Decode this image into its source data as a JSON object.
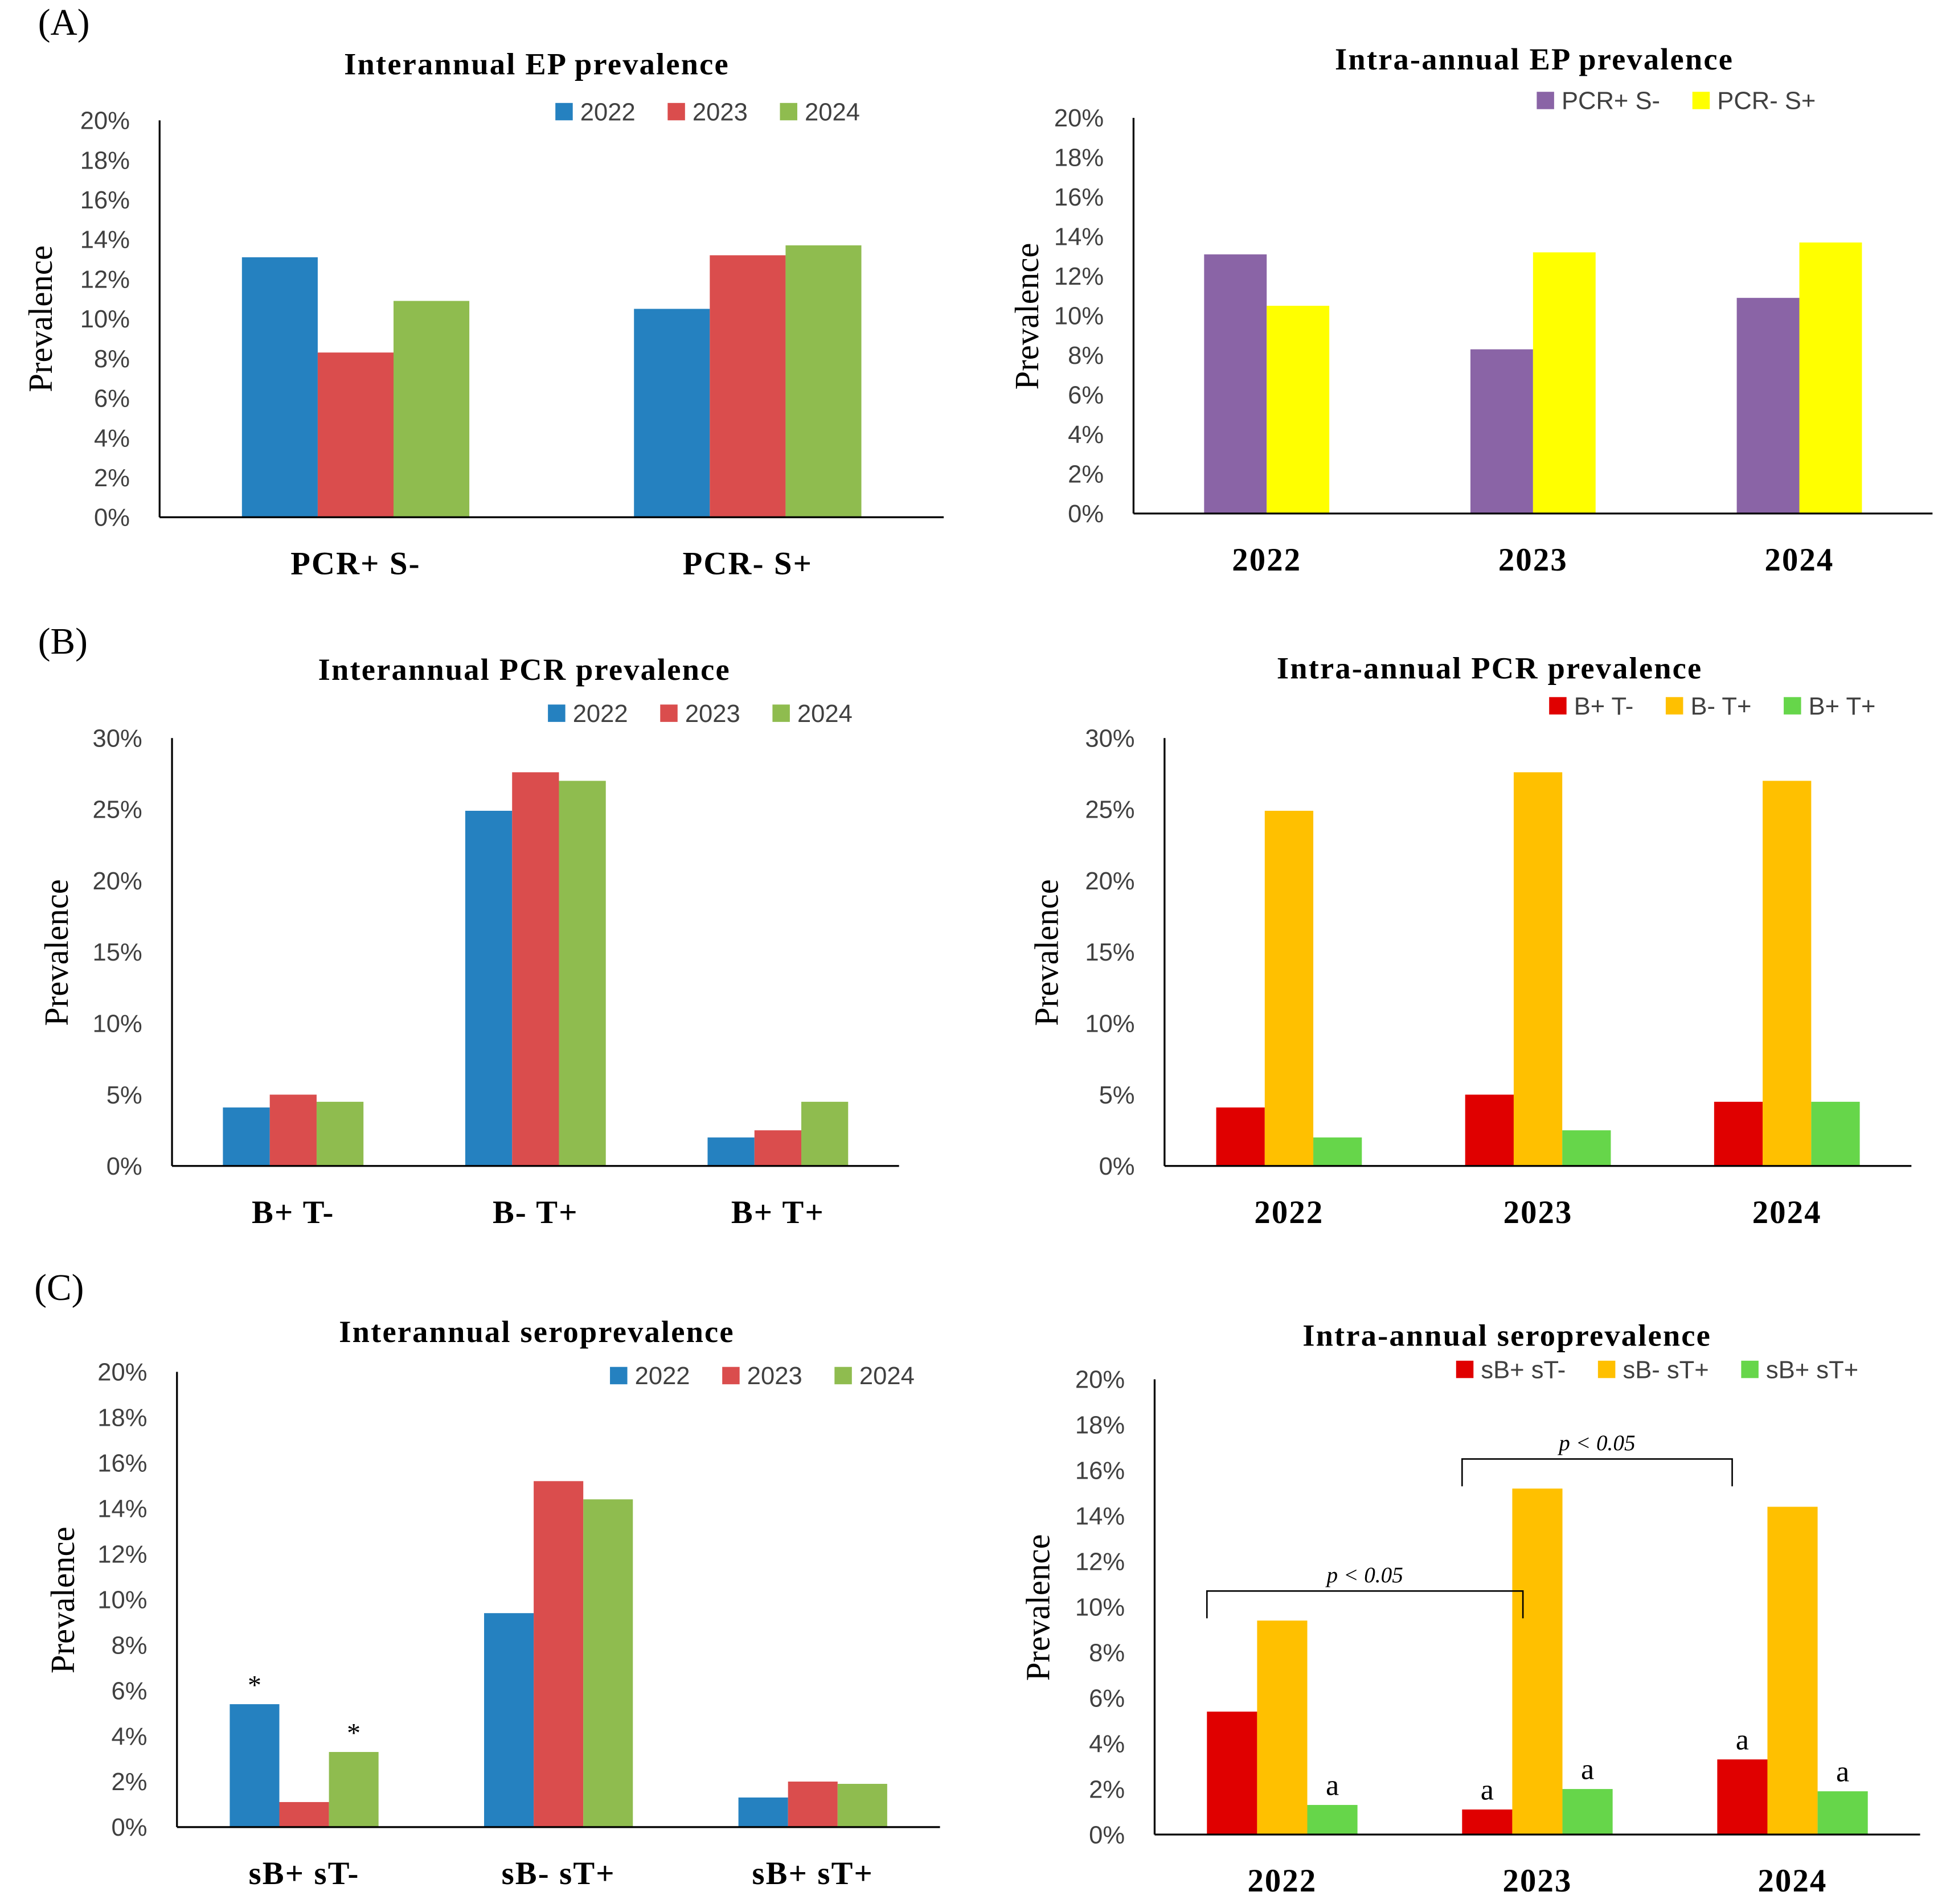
{
  "chart_data": [
    {
      "panel_label": "(A)",
      "type": "bar",
      "title": "Interannual EP prevalence",
      "ylabel": "Prevalence",
      "ylim": [
        0,
        0.2
      ],
      "yticks": [
        "0%",
        "2%",
        "4%",
        "6%",
        "8%",
        "10%",
        "12%",
        "14%",
        "16%",
        "18%",
        "20%"
      ],
      "categories": [
        "PCR+ S-",
        "PCR- S+"
      ],
      "series": [
        {
          "name": "2022",
          "color": "#2581C0",
          "values": [
            0.131,
            0.105
          ]
        },
        {
          "name": "2023",
          "color": "#DA4D4D",
          "values": [
            0.083,
            0.132
          ]
        },
        {
          "name": "2024",
          "color": "#8FBC4F",
          "values": [
            0.109,
            0.137
          ]
        }
      ],
      "annotations": [],
      "brackets": []
    },
    {
      "type": "bar",
      "title": "Intra-annual EP prevalence",
      "ylabel": "Prevalence",
      "ylim": [
        0,
        0.2
      ],
      "yticks": [
        "0%",
        "2%",
        "4%",
        "6%",
        "8%",
        "10%",
        "12%",
        "14%",
        "16%",
        "18%",
        "20%"
      ],
      "categories": [
        "2022",
        "2023",
        "2024"
      ],
      "series": [
        {
          "name": "PCR+ S-",
          "color": "#8A64A6",
          "values": [
            0.131,
            0.083,
            0.109
          ]
        },
        {
          "name": "PCR- S+",
          "color": "#FFFF00",
          "values": [
            0.105,
            0.132,
            0.137
          ]
        }
      ],
      "annotations": [],
      "brackets": []
    },
    {
      "panel_label": "(B)",
      "type": "bar",
      "title": "Interannual PCR prevalence",
      "ylabel": "Prevalence",
      "ylim": [
        0,
        0.3
      ],
      "yticks": [
        "0%",
        "5%",
        "10%",
        "15%",
        "20%",
        "25%",
        "30%"
      ],
      "categories": [
        "B+ T-",
        "B- T+",
        "B+ T+"
      ],
      "series": [
        {
          "name": "2022",
          "color": "#2581C0",
          "values": [
            0.041,
            0.249,
            0.02
          ]
        },
        {
          "name": "2023",
          "color": "#DA4D4D",
          "values": [
            0.05,
            0.276,
            0.025
          ]
        },
        {
          "name": "2024",
          "color": "#8FBC4F",
          "values": [
            0.045,
            0.27,
            0.045
          ]
        }
      ],
      "annotations": [],
      "brackets": []
    },
    {
      "type": "bar",
      "title": "Intra-annual PCR prevalence",
      "ylabel": "Prevalence",
      "ylim": [
        0,
        0.3
      ],
      "yticks": [
        "0%",
        "5%",
        "10%",
        "15%",
        "20%",
        "25%",
        "30%"
      ],
      "categories": [
        "2022",
        "2023",
        "2024"
      ],
      "series": [
        {
          "name": "B+ T-",
          "color": "#E00000",
          "values": [
            0.041,
            0.05,
            0.045
          ]
        },
        {
          "name": "B- T+",
          "color": "#FFC000",
          "values": [
            0.249,
            0.276,
            0.27
          ]
        },
        {
          "name": "B+ T+",
          "color": "#66D64A",
          "values": [
            0.02,
            0.025,
            0.045
          ]
        }
      ],
      "annotations": [],
      "brackets": []
    },
    {
      "panel_label": "(C)",
      "type": "bar",
      "title": "Interannual seroprevalence",
      "ylabel": "Prevalence",
      "ylim": [
        0,
        0.2
      ],
      "yticks": [
        "0%",
        "2%",
        "4%",
        "6%",
        "8%",
        "10%",
        "12%",
        "14%",
        "16%",
        "18%",
        "20%"
      ],
      "categories": [
        "sB+ sT-",
        "sB- sT+",
        "sB+ sT+"
      ],
      "series": [
        {
          "name": "2022",
          "color": "#2581C0",
          "values": [
            0.054,
            0.094,
            0.013
          ]
        },
        {
          "name": "2023",
          "color": "#DA4D4D",
          "values": [
            0.011,
            0.152,
            0.02
          ]
        },
        {
          "name": "2024",
          "color": "#8FBC4F",
          "values": [
            0.033,
            0.144,
            0.019
          ]
        }
      ],
      "annotations": [
        {
          "category": 0,
          "series": 0,
          "text": "*"
        },
        {
          "category": 0,
          "series": 2,
          "text": "*"
        }
      ],
      "brackets": []
    },
    {
      "type": "bar",
      "title": "Intra-annual seroprevalence",
      "ylabel": "Prevalence",
      "ylim": [
        0,
        0.2
      ],
      "yticks": [
        "0%",
        "2%",
        "4%",
        "6%",
        "8%",
        "10%",
        "12%",
        "14%",
        "16%",
        "18%",
        "20%"
      ],
      "categories": [
        "2022",
        "2023",
        "2024"
      ],
      "series": [
        {
          "name": "sB+ sT-",
          "color": "#E00000",
          "values": [
            0.054,
            0.011,
            0.033
          ]
        },
        {
          "name": "sB- sT+",
          "color": "#FFC000",
          "values": [
            0.094,
            0.152,
            0.144
          ]
        },
        {
          "name": "sB+ sT+",
          "color": "#66D64A",
          "values": [
            0.013,
            0.02,
            0.019
          ]
        }
      ],
      "annotations": [
        {
          "category": 0,
          "series": 2,
          "text": "a"
        },
        {
          "category": 1,
          "series": 0,
          "text": "a"
        },
        {
          "category": 1,
          "series": 2,
          "text": "a"
        },
        {
          "category": 2,
          "series": 0,
          "text": "a"
        },
        {
          "category": 2,
          "series": 2,
          "text": "a"
        }
      ],
      "brackets": [
        {
          "from": 0,
          "to": 1,
          "level": 0.107,
          "text": "p < 0.05"
        },
        {
          "from": 1,
          "to": 2,
          "level": 0.165,
          "text": "p < 0.05"
        }
      ]
    }
  ]
}
